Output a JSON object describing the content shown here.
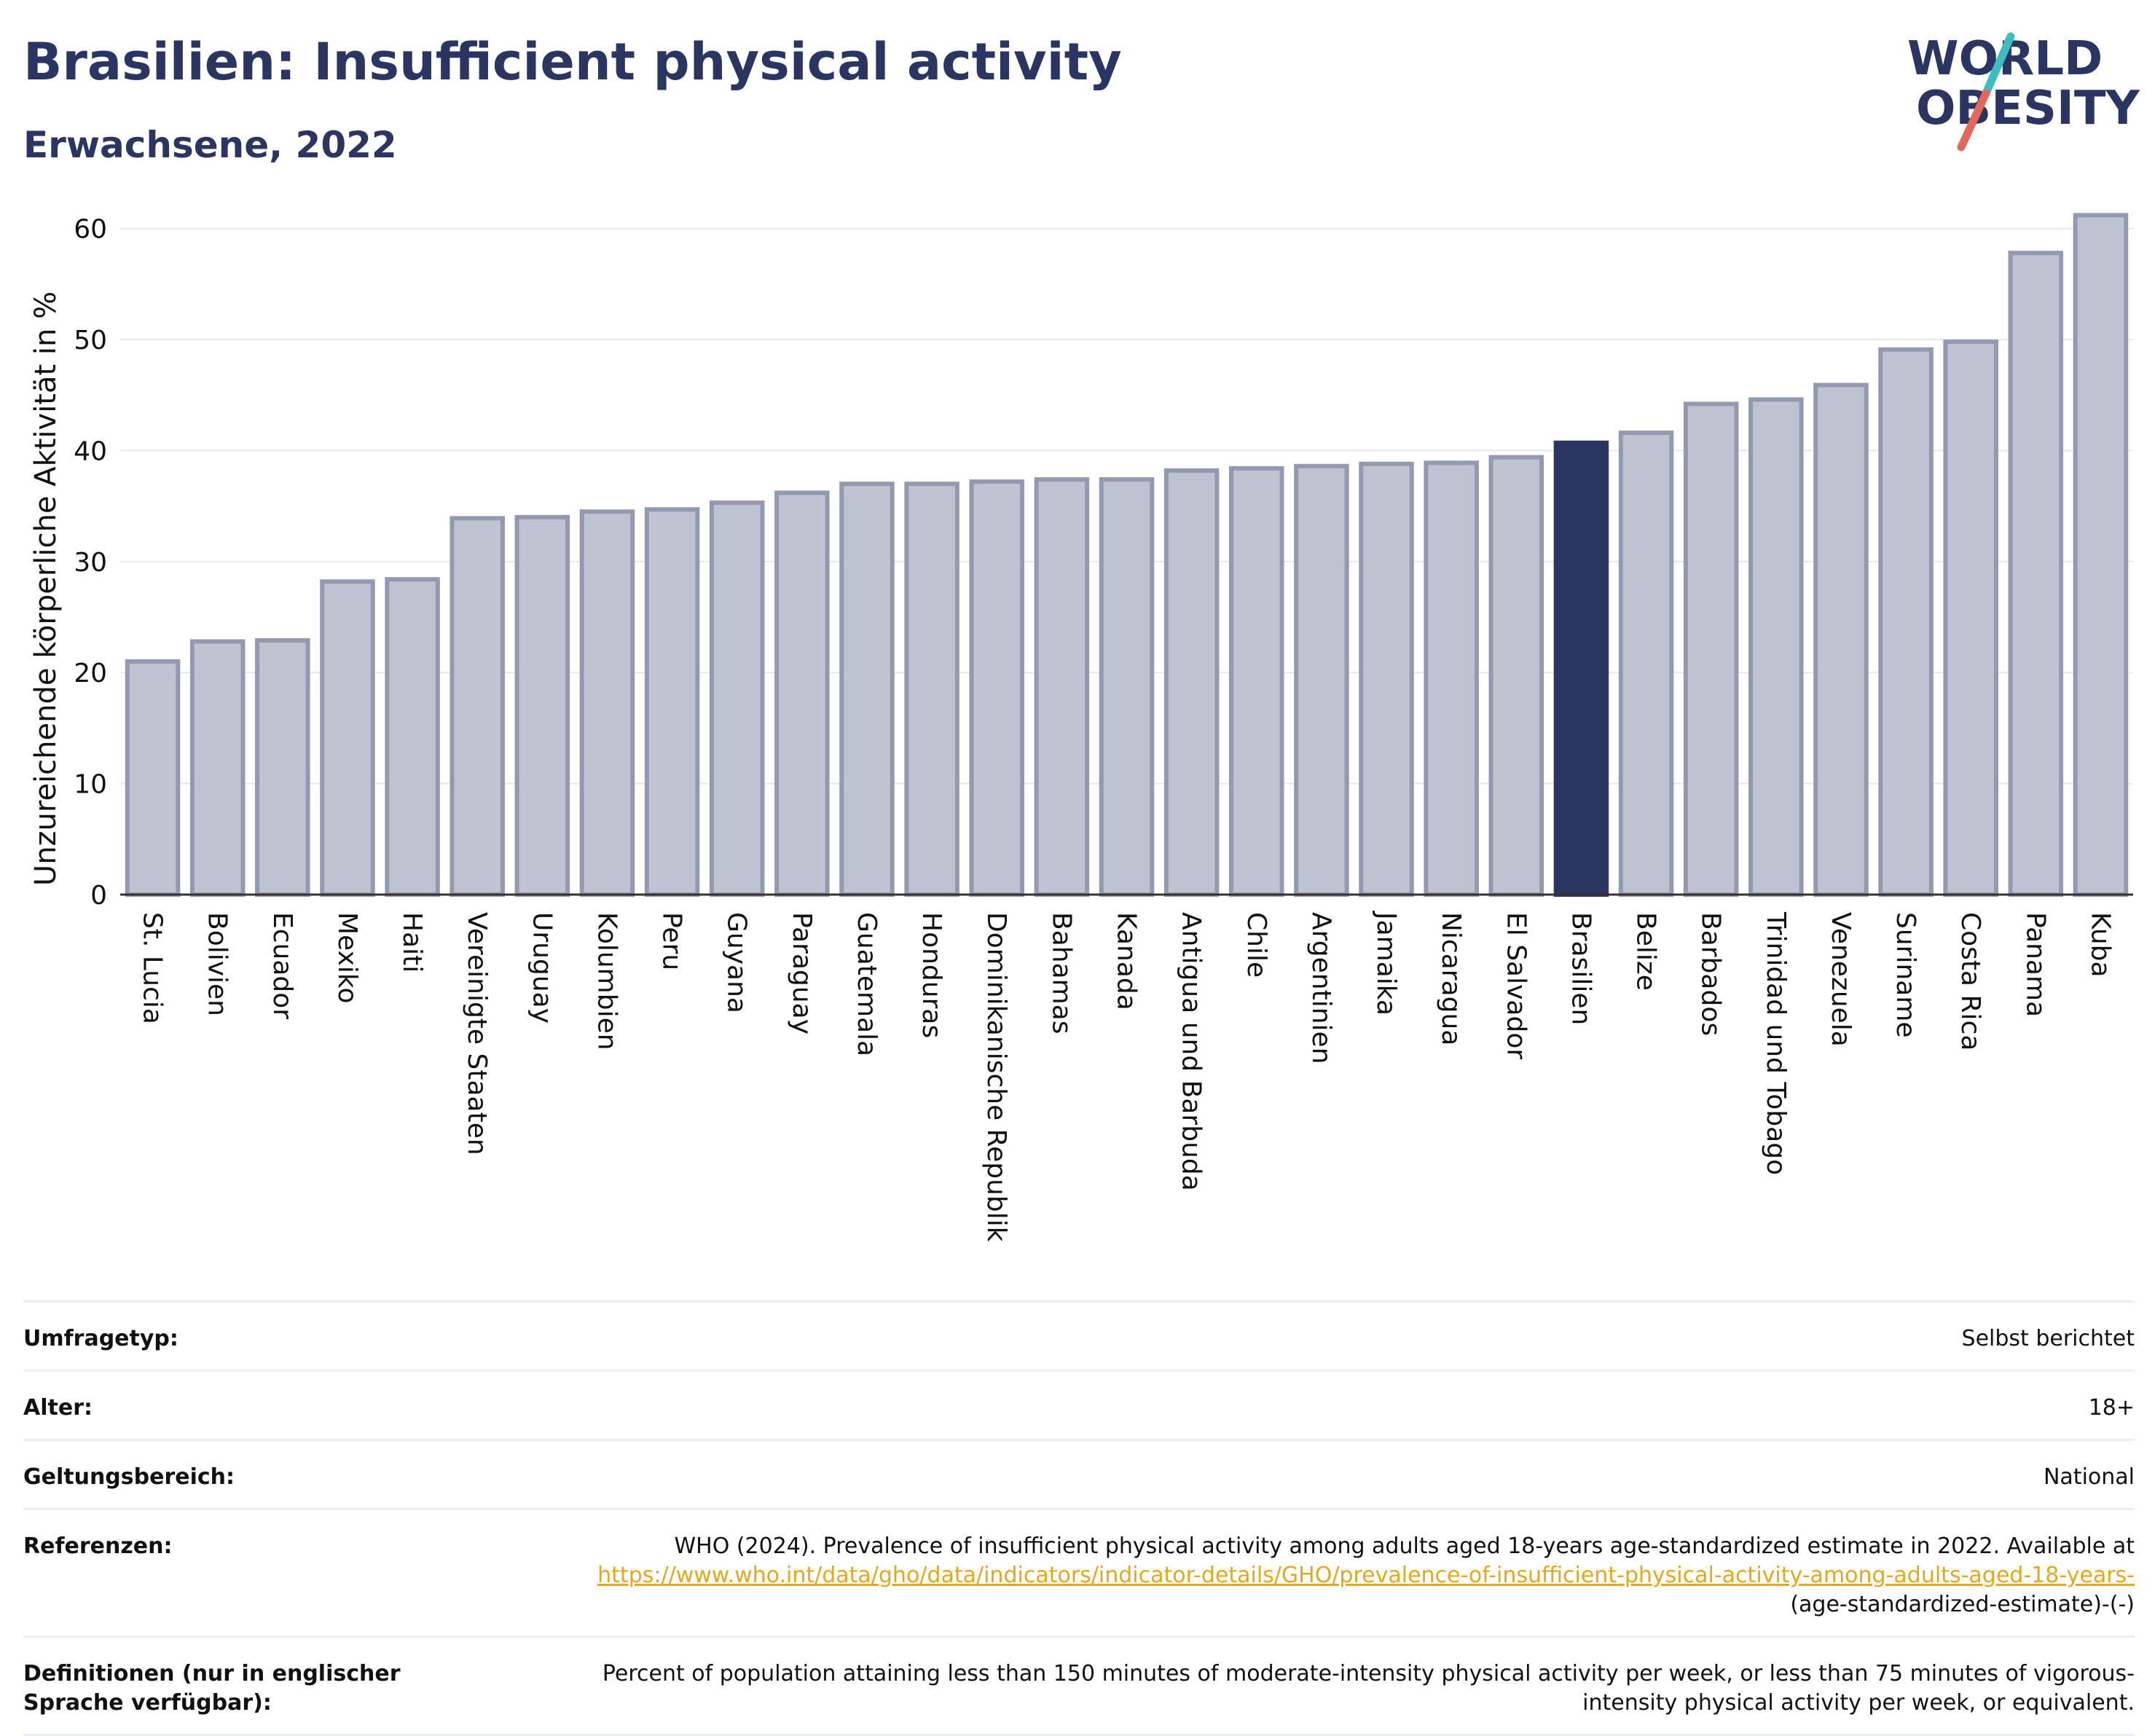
{
  "header": {
    "title": "Brasilien: Insufficient physical activity",
    "subtitle": "Erwachsene, 2022",
    "logo_text": [
      "WORLD",
      "OBESITY"
    ]
  },
  "colors": {
    "title": "#2b3561",
    "bar_default": "#bfc2d0",
    "bar_default_stroke": "#9499b2",
    "bar_highlight": "#2b3561",
    "logo_teal": "#3dbdbf",
    "logo_coral": "#e4685a",
    "link": "#e3a81c"
  },
  "chart_data": {
    "type": "bar",
    "ylabel": "Unzureichende körperliche Aktivität in %",
    "xlabel": "",
    "ylim": [
      0,
      63
    ],
    "yticks": [
      0,
      10,
      20,
      30,
      40,
      50,
      60
    ],
    "grid": true,
    "highlight": "Brasilien",
    "categories": [
      "St. Lucia",
      "Bolivien",
      "Ecuador",
      "Mexiko",
      "Haiti",
      "Vereinigte Staaten",
      "Uruguay",
      "Kolumbien",
      "Peru",
      "Guyana",
      "Paraguay",
      "Guatemala",
      "Honduras",
      "Dominikanische Republik",
      "Bahamas",
      "Kanada",
      "Antigua und Barbuda",
      "Chile",
      "Argentinien",
      "Jamaika",
      "Nicaragua",
      "El Salvador",
      "Brasilien",
      "Belize",
      "Barbados",
      "Trinidad und Tobago",
      "Venezuela",
      "Suriname",
      "Costa Rica",
      "Panama",
      "Kuba"
    ],
    "values": [
      21.0,
      22.8,
      22.9,
      28.2,
      28.4,
      33.9,
      34.0,
      34.5,
      34.7,
      35.3,
      36.2,
      37.0,
      37.0,
      37.2,
      37.4,
      37.4,
      38.2,
      38.4,
      38.6,
      38.8,
      38.9,
      39.4,
      40.7,
      41.6,
      44.2,
      44.6,
      45.9,
      49.1,
      49.8,
      57.8,
      61.2
    ]
  },
  "metadata": {
    "rows": [
      {
        "label": "Umfragetyp:",
        "value": "Selbst berichtet"
      },
      {
        "label": "Alter:",
        "value": "18+"
      },
      {
        "label": "Geltungsbereich:",
        "value": "National"
      },
      {
        "label": "Referenzen:",
        "value": "WHO (2024). Prevalence of insufficient physical activity among adults aged 18-years age-standardized estimate in 2022. Available at",
        "link": "https://www.who.int/data/gho/data/indicators/indicator-details/GHO/prevalence-of-insufficient-physical-activity-among-adults-aged-18-years-",
        "suffix": "(age-standardized-estimate)-(-)"
      },
      {
        "label": "Definitionen (nur in englischer Sprache verfügbar):",
        "value": "Percent of population attaining less than 150 minutes of moderate-intensity physical activity per week, or less than 75 minutes of vigorous-intensity physical activity per week, or equivalent."
      }
    ]
  }
}
